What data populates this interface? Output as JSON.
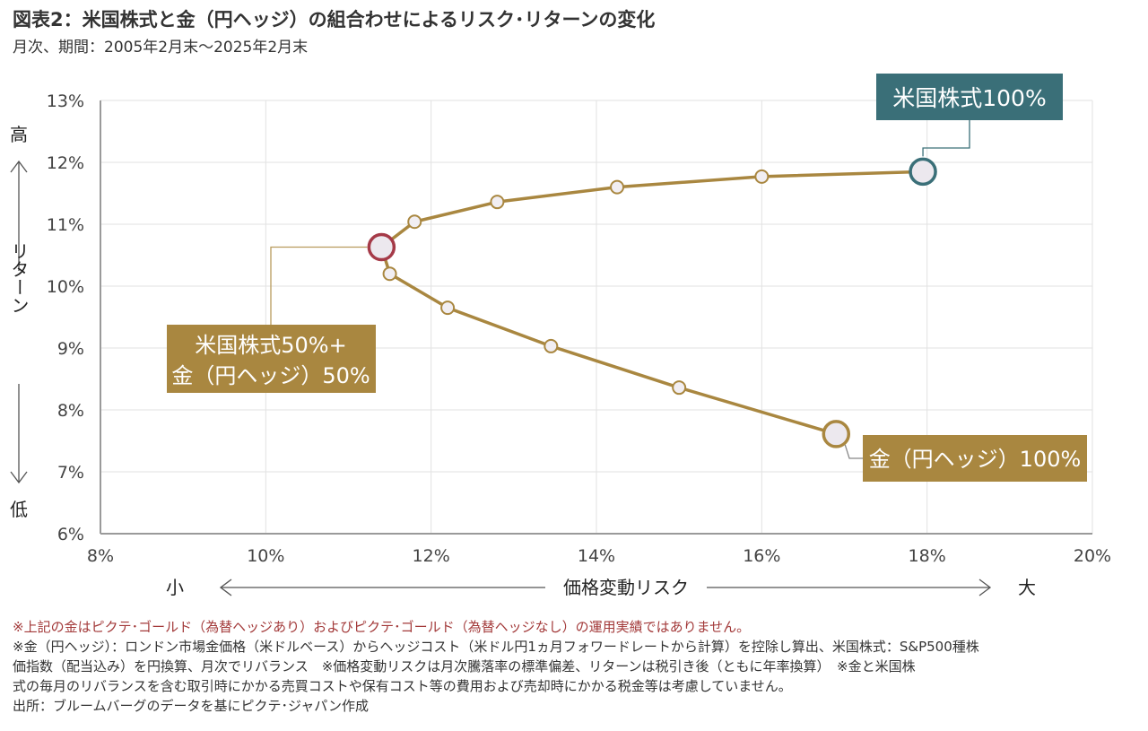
{
  "header": {
    "title": "図表2：米国株式と金（円ヘッジ）の組合わせによるリスク･リターンの変化",
    "subtitle": "月次、期間：2005年2月末～2025年2月末"
  },
  "chart_data": {
    "type": "scatter",
    "xlabel": "価格変動リスク",
    "ylabel": "リターン",
    "xlim": [
      8,
      20
    ],
    "ylim": [
      6,
      13
    ],
    "x_ticks": [
      "8%",
      "10%",
      "12%",
      "14%",
      "16%",
      "18%",
      "20%"
    ],
    "y_ticks": [
      "6%",
      "7%",
      "8%",
      "9%",
      "10%",
      "11%",
      "12%",
      "13%"
    ],
    "x_low": "小",
    "x_high": "大",
    "y_high": "高",
    "y_low": "低",
    "grid": true,
    "series": [
      {
        "points": [
          {
            "x": 17.95,
            "y": 11.85,
            "highlight": "us"
          },
          {
            "x": 16.0,
            "y": 11.77
          },
          {
            "x": 14.25,
            "y": 11.6
          },
          {
            "x": 12.8,
            "y": 11.36
          },
          {
            "x": 11.8,
            "y": 11.04
          },
          {
            "x": 11.4,
            "y": 10.63,
            "highlight": "mix"
          },
          {
            "x": 11.5,
            "y": 10.2
          },
          {
            "x": 12.2,
            "y": 9.65
          },
          {
            "x": 13.45,
            "y": 9.03
          },
          {
            "x": 15.0,
            "y": 8.36
          },
          {
            "x": 16.9,
            "y": 7.61,
            "highlight": "gold"
          }
        ]
      }
    ],
    "annotations": {
      "us": {
        "lines": [
          "米国株式100%"
        ]
      },
      "mix": {
        "lines": [
          "米国株式50%+",
          "金（円ヘッジ）50%"
        ]
      },
      "gold": {
        "lines": [
          "金（円ヘッジ）100%"
        ]
      }
    },
    "colors": {
      "line": "#a98740",
      "us": "#3a6f78",
      "mix": "#a53a48",
      "gold": "#a98740",
      "label_teal_bg": "#3a6f78",
      "label_gold_bg": "#a98740"
    }
  },
  "notes": {
    "warning": "※上記の金はピクテ･ゴールド（為替ヘッジあり）およびピクテ･ゴールド（為替ヘッジなし）の運用実績ではありません。",
    "line1": "※金（円ヘッジ）：ロンドン市場金価格（米ドルベース）からヘッジコスト（米ドル円1ヵ月フォワードレートから計算）を控除し算出、米国株式：S&P500種株",
    "line2": "価指数（配当込み）を円換算、月次でリバランス　※価格変動リスクは月次騰落率の標準偏差、リターンは税引き後（ともに年率換算）　※金と米国株",
    "line3": "式の毎月のリバランスを含む取引時にかかる売買コストや保有コスト等の費用および売却時にかかる税金等は考慮していません。",
    "source": "出所：ブルームバーグのデータを基にピクテ･ジャパン作成"
  }
}
